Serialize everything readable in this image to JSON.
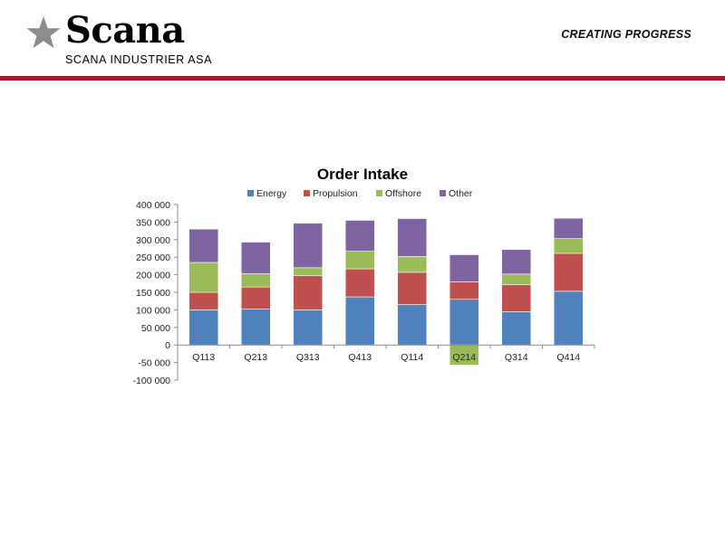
{
  "header": {
    "brand": "Scana",
    "company": "SCANA INDUSTRIER ASA",
    "tagline": "CREATING PROGRESS"
  },
  "colors": {
    "accent": "#a8182a",
    "logo_star": "#8c8c8c",
    "energy": "#4f81bd",
    "propulsion": "#c0504d",
    "offshore": "#9bbb59",
    "other": "#8064a2"
  },
  "chart_data": {
    "type": "bar",
    "stacked": true,
    "title": "Order Intake",
    "xlabel": "",
    "ylabel": "",
    "ylim": [
      -100000,
      400000
    ],
    "y_ticks": [
      400000,
      350000,
      300000,
      250000,
      200000,
      150000,
      100000,
      50000,
      0,
      -50000,
      -100000
    ],
    "y_tick_labels": [
      "400 000",
      "350 000",
      "300 000",
      "250 000",
      "200 000",
      "150 000",
      "100 000",
      "50 000",
      "0",
      "-50 000",
      "-100 000"
    ],
    "grid": false,
    "legend_position": "top",
    "categories": [
      "Q113",
      "Q213",
      "Q313",
      "Q413",
      "Q114",
      "Q214",
      "Q314",
      "Q414"
    ],
    "series": [
      {
        "name": "Energy",
        "color": "#4f81bd",
        "values": [
          100000,
          102000,
          100000,
          137000,
          115000,
          130000,
          95000,
          153000
        ]
      },
      {
        "name": "Propulsion",
        "color": "#c0504d",
        "values": [
          50000,
          63000,
          98000,
          80000,
          92000,
          50000,
          77000,
          108000
        ]
      },
      {
        "name": "Offshore",
        "color": "#9bbb59",
        "values": [
          85000,
          38000,
          22000,
          50000,
          45000,
          -57000,
          30000,
          42000
        ]
      },
      {
        "name": "Other",
        "color": "#8064a2",
        "values": [
          95000,
          90000,
          127000,
          88000,
          108000,
          77000,
          70000,
          58000
        ]
      }
    ]
  }
}
